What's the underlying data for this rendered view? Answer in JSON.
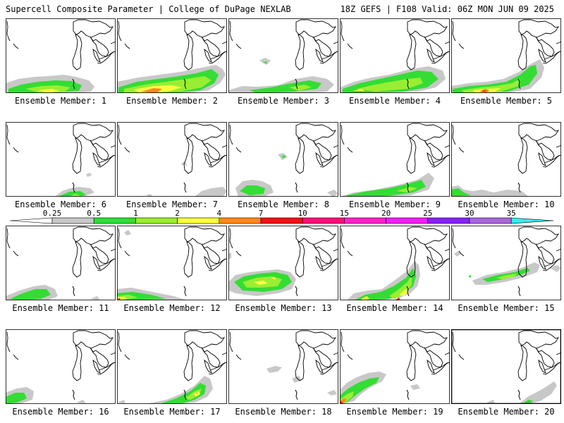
{
  "title_left": "Supercell Composite Parameter | College of DuPage NEXLAB",
  "title_right": "18Z GEFS | F108 Valid: 06Z MON JUN 09 2025",
  "member_label": "Ensemble Member:",
  "members": [
    {
      "id": "1"
    },
    {
      "id": "2"
    },
    {
      "id": "3"
    },
    {
      "id": "4"
    },
    {
      "id": "5"
    },
    {
      "id": "6"
    },
    {
      "id": "7"
    },
    {
      "id": "8"
    },
    {
      "id": "9"
    },
    {
      "id": "10"
    },
    {
      "id": "11"
    },
    {
      "id": "12"
    },
    {
      "id": "13"
    },
    {
      "id": "14"
    },
    {
      "id": "15"
    },
    {
      "id": "16"
    },
    {
      "id": "17"
    },
    {
      "id": "18"
    },
    {
      "id": "19"
    },
    {
      "id": "20"
    }
  ],
  "colorbar": {
    "labels": [
      "0.25",
      "0.5",
      "1",
      "2",
      "4",
      "7",
      "10",
      "15",
      "20",
      "25",
      "30",
      "35"
    ],
    "colors": [
      "#ffffff",
      "#c8c8c8",
      "#33dd33",
      "#99ee33",
      "#ffff44",
      "#ff8820",
      "#ee1111",
      "#ff1177",
      "#ff22cc",
      "#ee22ee",
      "#8822ee",
      "#aa66dd",
      "#33eeee"
    ]
  },
  "colors": {
    "outline": "#000000",
    "border": "#000000"
  }
}
